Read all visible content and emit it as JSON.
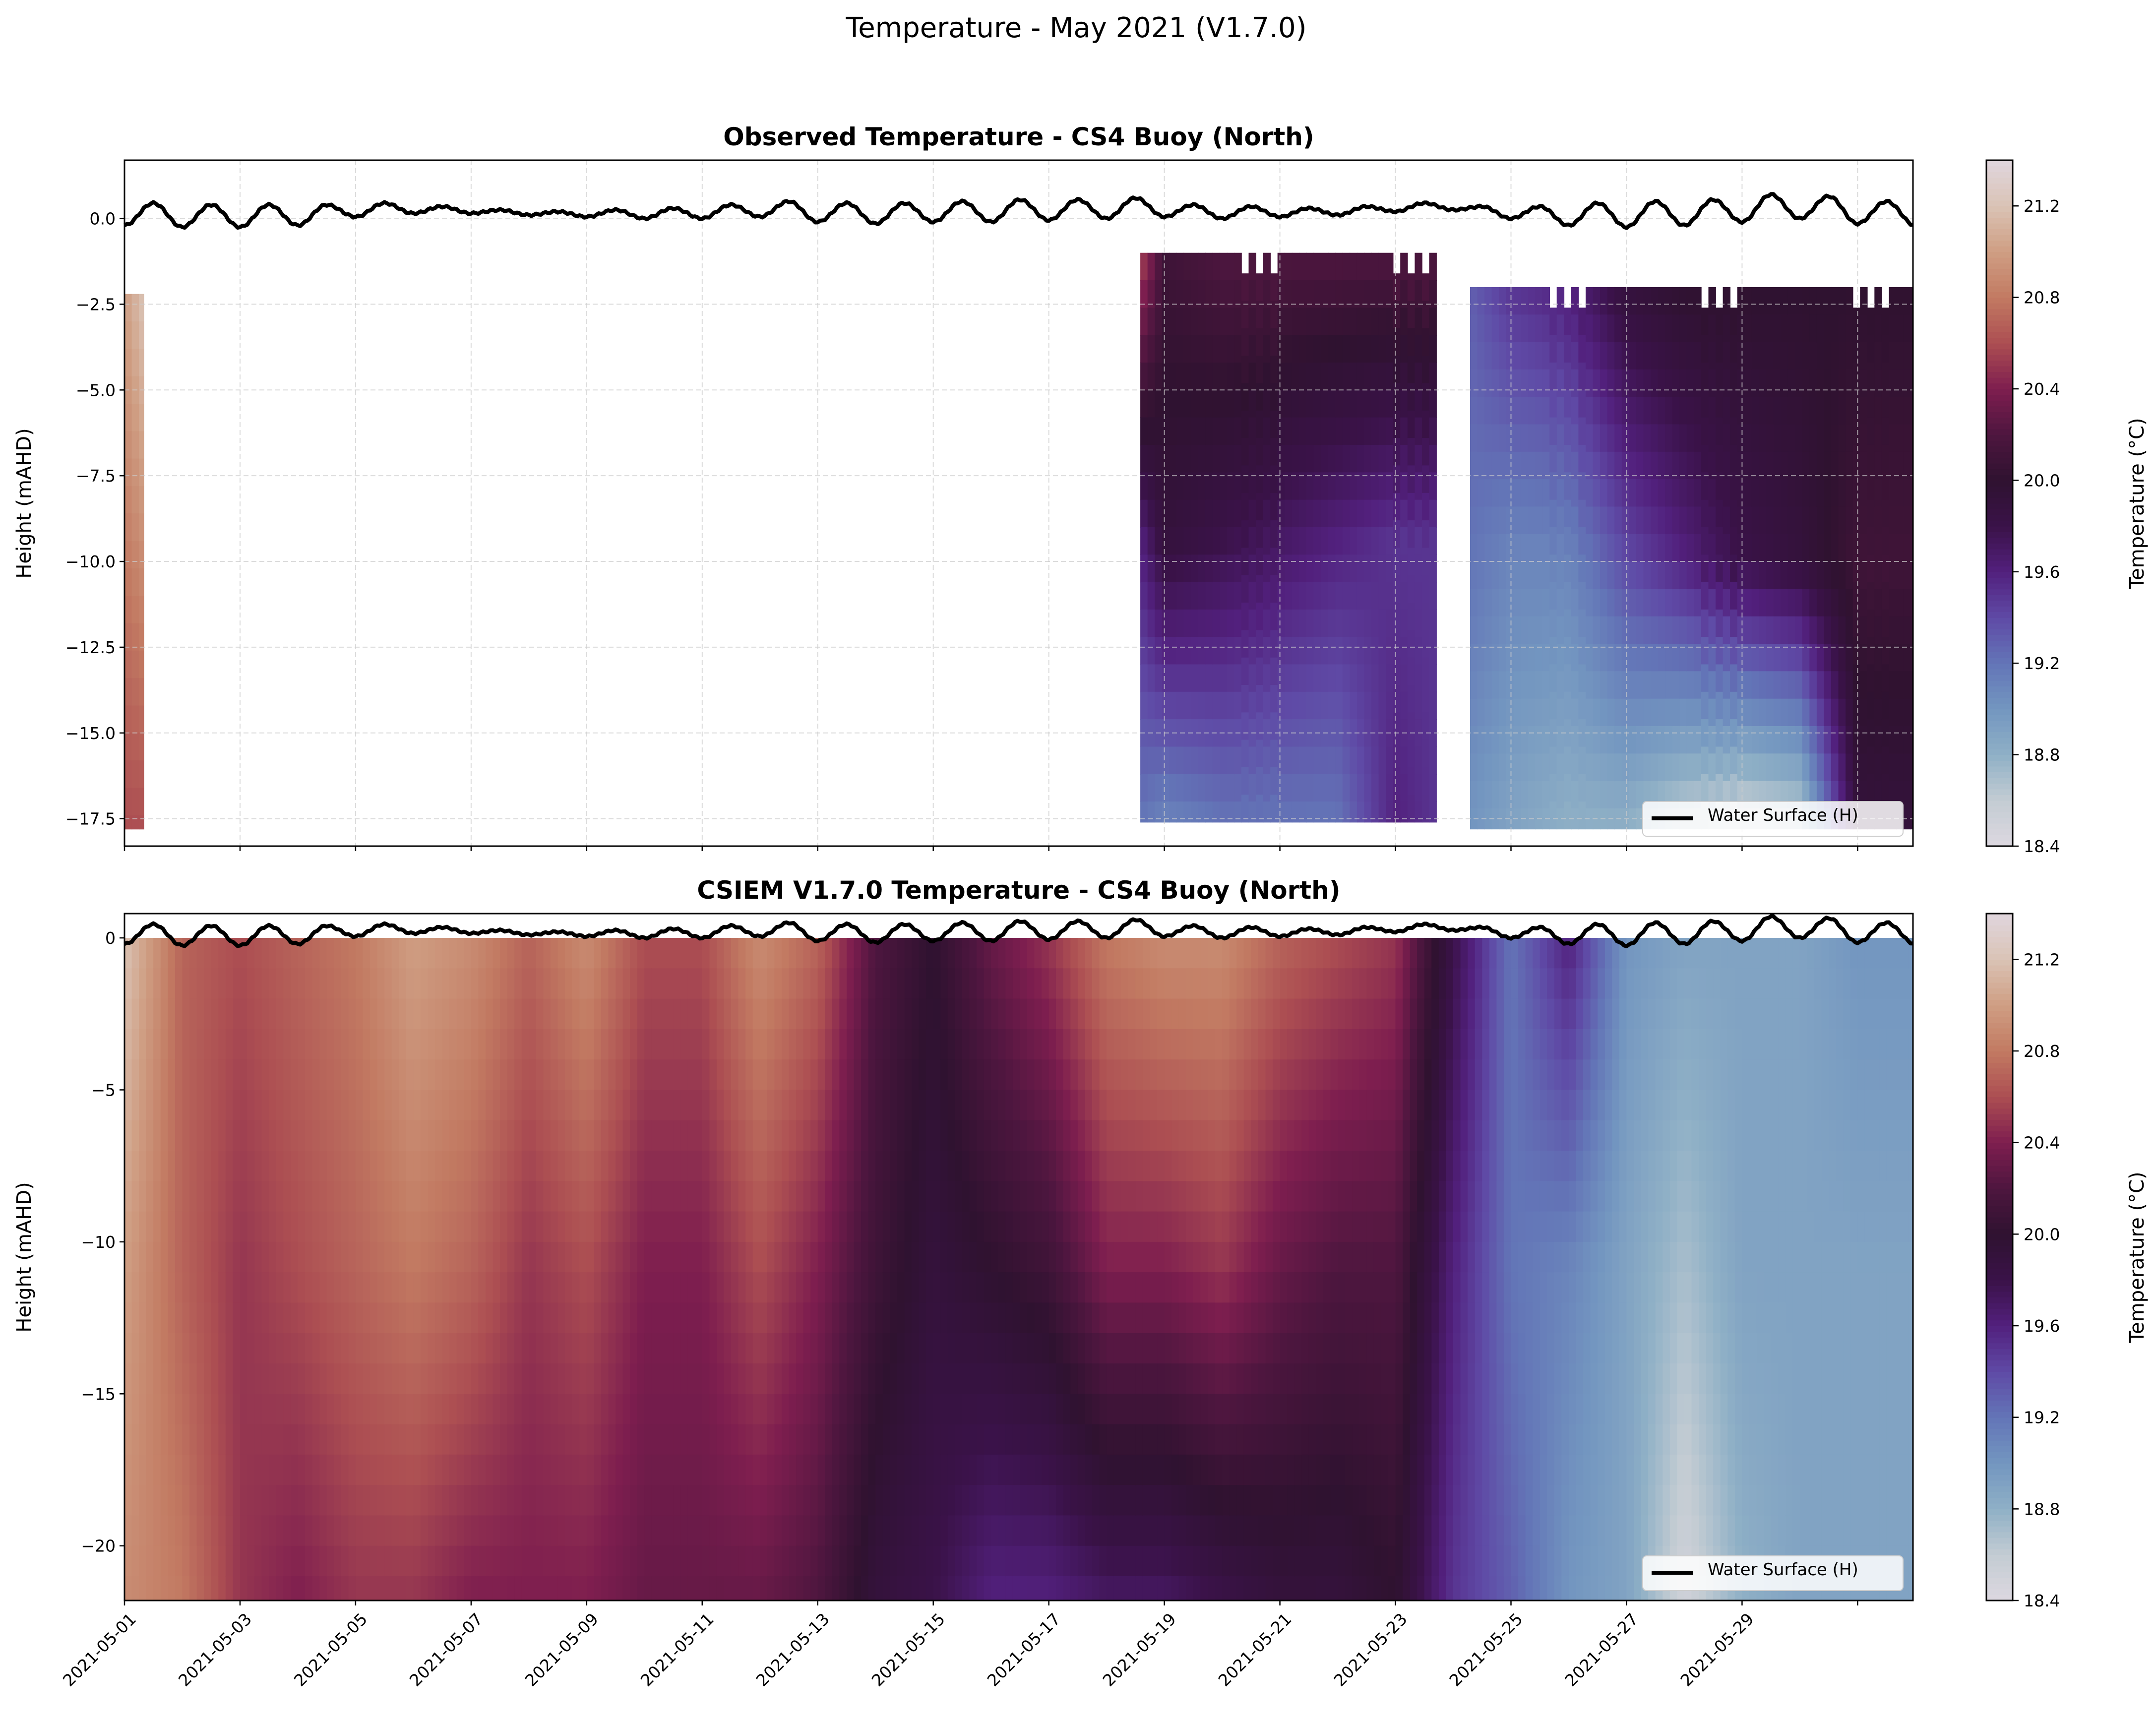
{
  "figure_title": "Temperature - May 2021 (V1.7.0)",
  "colormap": {
    "stops": [
      [
        18.4,
        "#ddd8e0"
      ],
      [
        18.6,
        "#c3ccd3"
      ],
      [
        18.8,
        "#8fb0c6"
      ],
      [
        19.0,
        "#7396c0"
      ],
      [
        19.2,
        "#6375b7"
      ],
      [
        19.4,
        "#5f4aa6"
      ],
      [
        19.6,
        "#52207d"
      ],
      [
        19.8,
        "#3a1248"
      ],
      [
        20.0,
        "#2f1230"
      ],
      [
        20.2,
        "#4e163f"
      ],
      [
        20.4,
        "#7e1e4f"
      ],
      [
        20.6,
        "#ac4e52"
      ],
      [
        20.8,
        "#c27a62"
      ],
      [
        21.0,
        "#cf9e83"
      ],
      [
        21.2,
        "#dac3b5"
      ],
      [
        21.4,
        "#e0d6de"
      ]
    ]
  },
  "chart_data": [
    {
      "type": "heatmap",
      "title": "Observed Temperature - CS4 Buoy (North)",
      "xlabel": "",
      "ylabel": "Height (mAHD)",
      "xlim": [
        "2021-05-01",
        "2021-05-31T23:00"
      ],
      "ylim": [
        -18.3,
        1.7
      ],
      "yticks": [
        "0.0",
        "−2.5",
        "−5.0",
        "−7.5",
        "−10.0",
        "−12.5",
        "−15.0",
        "−17.5"
      ],
      "ytick_values": [
        0,
        -2.5,
        -5,
        -7.5,
        -10,
        -12.5,
        -15,
        -17.5
      ],
      "grid": true,
      "colorbar": {
        "label": "Temperature (°C)",
        "range": [
          18.4,
          21.4
        ],
        "ticks": [
          "21.2",
          "20.8",
          "20.4",
          "20.0",
          "19.6",
          "19.2",
          "18.8",
          "18.4"
        ],
        "tick_values": [
          21.2,
          20.8,
          20.4,
          20.0,
          19.6,
          19.2,
          18.8,
          18.4
        ]
      },
      "legend": {
        "label": "Water Surface (H)",
        "placement": "lower-right"
      },
      "segments": [
        {
          "start": "2021-05-01T00:00",
          "end": "2021-05-01T08:00",
          "top": -2.2,
          "bottom": -17.8,
          "profiles": [
            {
              "date": "2021-05-01T00:00",
              "surface": 21.0,
              "mid": 20.8,
              "bottom": 20.6
            },
            {
              "date": "2021-05-01T08:00",
              "surface": 21.2,
              "mid": 20.9,
              "bottom": 20.6
            }
          ]
        },
        {
          "start": "2021-05-18T14:00",
          "end": "2021-05-23T17:00",
          "top": -1.0,
          "bottom": -17.6,
          "profiles": [
            {
              "date": "2021-05-18T14:00",
              "surface": 20.6,
              "mid": 19.6,
              "bottom": 19.2
            },
            {
              "date": "2021-05-19T00:00",
              "surface": 20.1,
              "mid": 19.9,
              "bottom": 19.1
            },
            {
              "date": "2021-05-20T00:00",
              "surface": 20.2,
              "mid": 19.8,
              "bottom": 19.2
            },
            {
              "date": "2021-05-21T00:00",
              "surface": 20.2,
              "mid": 19.7,
              "bottom": 19.2
            },
            {
              "date": "2021-05-22T00:00",
              "surface": 20.2,
              "mid": 19.6,
              "bottom": 19.2
            },
            {
              "date": "2021-05-23T00:00",
              "surface": 20.2,
              "mid": 19.5,
              "bottom": 19.6
            },
            {
              "date": "2021-05-23T17:00",
              "surface": 20.2,
              "mid": 19.5,
              "bottom": 19.5
            }
          ]
        },
        {
          "start": "2021-05-24T07:00",
          "end": "2021-05-31T23:00",
          "top": -2.0,
          "bottom": -17.8,
          "profiles": [
            {
              "date": "2021-05-24T07:00",
              "surface": 19.3,
              "mid": 19.2,
              "bottom": 19.0
            },
            {
              "date": "2021-05-25T00:00",
              "surface": 19.5,
              "mid": 19.1,
              "bottom": 18.9
            },
            {
              "date": "2021-05-26T00:00",
              "surface": 19.6,
              "mid": 19.1,
              "bottom": 18.8
            },
            {
              "date": "2021-05-27T00:00",
              "surface": 19.9,
              "mid": 19.4,
              "bottom": 18.8
            },
            {
              "date": "2021-05-28T00:00",
              "surface": 20.0,
              "mid": 19.6,
              "bottom": 18.6
            },
            {
              "date": "2021-05-29T00:00",
              "surface": 20.0,
              "mid": 19.8,
              "bottom": 18.5
            },
            {
              "date": "2021-05-30T00:00",
              "surface": 20.0,
              "mid": 19.9,
              "bottom": 18.6
            },
            {
              "date": "2021-05-31T00:00",
              "surface": 20.0,
              "mid": 20.1,
              "bottom": 19.9
            },
            {
              "date": "2021-05-31T23:00",
              "surface": 20.0,
              "mid": 20.1,
              "bottom": 19.9
            }
          ]
        }
      ]
    },
    {
      "type": "heatmap",
      "title": "CSIEM V1.7.0 Temperature - CS4 Buoy (North)",
      "xlabel": "",
      "ylabel": "Height (mAHD)",
      "xlim": [
        "2021-05-01",
        "2021-05-31T23:00"
      ],
      "ylim": [
        -21.8,
        0.8
      ],
      "yticks": [
        "0",
        "−5",
        "−10",
        "−15",
        "−20"
      ],
      "ytick_values": [
        0,
        -5,
        -10,
        -15,
        -20
      ],
      "xticks": [
        "2021-05-01",
        "2021-05-03",
        "2021-05-05",
        "2021-05-07",
        "2021-05-09",
        "2021-05-11",
        "2021-05-13",
        "2021-05-15",
        "2021-05-17",
        "2021-05-19",
        "2021-05-21",
        "2021-05-23",
        "2021-05-25",
        "2021-05-27",
        "2021-05-29"
      ],
      "grid": false,
      "colorbar": {
        "label": "Temperature (°C)",
        "range": [
          18.4,
          21.4
        ],
        "ticks": [
          "21.2",
          "20.8",
          "20.4",
          "20.0",
          "19.6",
          "19.2",
          "18.8",
          "18.4"
        ],
        "tick_values": [
          21.2,
          20.8,
          20.4,
          20.0,
          19.6,
          19.2,
          18.8,
          18.4
        ]
      },
      "legend": {
        "label": "Water Surface (H)",
        "placement": "lower-right"
      },
      "segments": [
        {
          "start": "2021-05-01T00:00",
          "end": "2021-05-31T23:00",
          "top": 0.0,
          "bottom": -21.8,
          "profiles": [
            {
              "date": "2021-05-01",
              "surface": 21.2,
              "mid": 21.0,
              "bottom": 20.9
            },
            {
              "date": "2021-05-02",
              "surface": 20.7,
              "mid": 20.7,
              "bottom": 20.8
            },
            {
              "date": "2021-05-03",
              "surface": 20.6,
              "mid": 20.5,
              "bottom": 20.5
            },
            {
              "date": "2021-05-04",
              "surface": 20.7,
              "mid": 20.6,
              "bottom": 20.4
            },
            {
              "date": "2021-05-05",
              "surface": 20.8,
              "mid": 20.7,
              "bottom": 20.5
            },
            {
              "date": "2021-05-06",
              "surface": 21.0,
              "mid": 20.8,
              "bottom": 20.5
            },
            {
              "date": "2021-05-07",
              "surface": 20.9,
              "mid": 20.7,
              "bottom": 20.4
            },
            {
              "date": "2021-05-08",
              "surface": 20.7,
              "mid": 20.5,
              "bottom": 20.4
            },
            {
              "date": "2021-05-09",
              "surface": 20.9,
              "mid": 20.6,
              "bottom": 20.4
            },
            {
              "date": "2021-05-10",
              "surface": 20.6,
              "mid": 20.4,
              "bottom": 20.3
            },
            {
              "date": "2021-05-11",
              "surface": 20.6,
              "mid": 20.4,
              "bottom": 20.3
            },
            {
              "date": "2021-05-12",
              "surface": 20.9,
              "mid": 20.6,
              "bottom": 20.3
            },
            {
              "date": "2021-05-13",
              "surface": 20.7,
              "mid": 20.4,
              "bottom": 20.2
            },
            {
              "date": "2021-05-14",
              "surface": 20.2,
              "mid": 20.1,
              "bottom": 19.9
            },
            {
              "date": "2021-05-15",
              "surface": 20.0,
              "mid": 19.9,
              "bottom": 19.8
            },
            {
              "date": "2021-05-16",
              "surface": 20.3,
              "mid": 20.0,
              "bottom": 19.6
            },
            {
              "date": "2021-05-17",
              "surface": 20.5,
              "mid": 20.1,
              "bottom": 19.6
            },
            {
              "date": "2021-05-18",
              "surface": 20.8,
              "mid": 20.4,
              "bottom": 19.7
            },
            {
              "date": "2021-05-19",
              "surface": 20.9,
              "mid": 20.4,
              "bottom": 19.7
            },
            {
              "date": "2021-05-20",
              "surface": 20.9,
              "mid": 20.5,
              "bottom": 19.8
            },
            {
              "date": "2021-05-21",
              "surface": 20.7,
              "mid": 20.3,
              "bottom": 19.9
            },
            {
              "date": "2021-05-22",
              "surface": 20.6,
              "mid": 20.2,
              "bottom": 19.9
            },
            {
              "date": "2021-05-23",
              "surface": 20.5,
              "mid": 20.2,
              "bottom": 20.0
            },
            {
              "date": "2021-05-24",
              "surface": 19.8,
              "mid": 19.6,
              "bottom": 19.5
            },
            {
              "date": "2021-05-25",
              "surface": 19.2,
              "mid": 19.2,
              "bottom": 19.3
            },
            {
              "date": "2021-05-26",
              "surface": 19.6,
              "mid": 19.1,
              "bottom": 19.0
            },
            {
              "date": "2021-05-27",
              "surface": 19.0,
              "mid": 18.9,
              "bottom": 18.9
            },
            {
              "date": "2021-05-28",
              "surface": 18.9,
              "mid": 18.7,
              "bottom": 18.5
            },
            {
              "date": "2021-05-29",
              "surface": 18.9,
              "mid": 18.9,
              "bottom": 18.8
            },
            {
              "date": "2021-05-30",
              "surface": 18.9,
              "mid": 18.9,
              "bottom": 18.9
            },
            {
              "date": "2021-05-31",
              "surface": 19.0,
              "mid": 18.9,
              "bottom": 18.9
            },
            {
              "date": "2021-05-31T23:00",
              "surface": 19.0,
              "mid": 18.9,
              "bottom": 18.9
            }
          ]
        }
      ]
    }
  ],
  "water_surface": {
    "label": "Water Surface (H)",
    "start": "2021-05-01T00:00",
    "step_hours": 12,
    "values": [
      -0.2,
      0.45,
      -0.25,
      0.4,
      -0.25,
      0.4,
      -0.2,
      0.4,
      0.05,
      0.45,
      0.15,
      0.35,
      0.15,
      0.25,
      0.1,
      0.2,
      0.05,
      0.25,
      0.0,
      0.3,
      0.0,
      0.4,
      0.05,
      0.5,
      -0.1,
      0.45,
      -0.15,
      0.45,
      -0.1,
      0.5,
      -0.1,
      0.55,
      -0.05,
      0.55,
      0.0,
      0.6,
      0.05,
      0.4,
      0.0,
      0.35,
      0.05,
      0.3,
      0.1,
      0.35,
      0.2,
      0.45,
      0.25,
      0.35,
      0.0,
      0.35,
      -0.2,
      0.45,
      -0.25,
      0.5,
      -0.2,
      0.55,
      -0.1,
      0.7,
      0.0,
      0.65,
      -0.15,
      0.5,
      -0.2
    ]
  }
}
